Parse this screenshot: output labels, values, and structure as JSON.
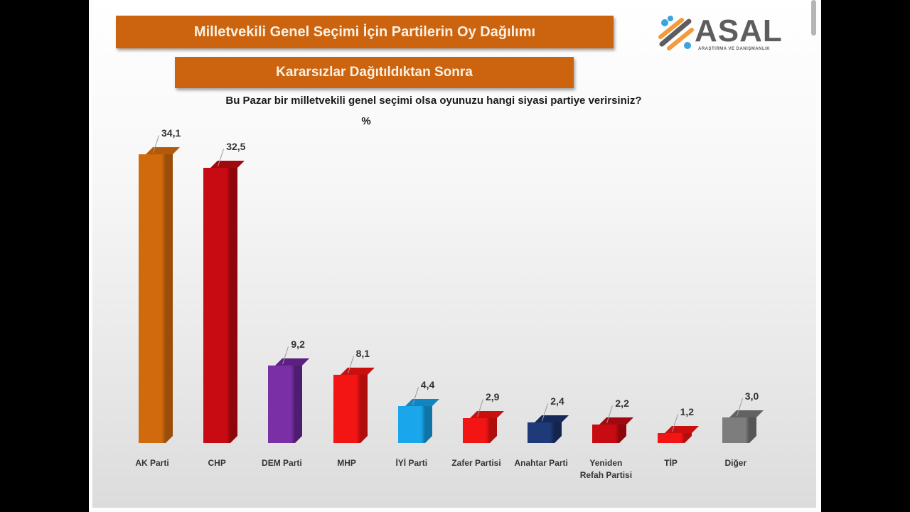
{
  "header": {
    "title": "Milletvekili Genel Seçimi İçin Partilerin Oy Dağılımı",
    "subtitle": "Kararsızlar Dağıtıldıktan Sonra",
    "question": "Bu Pazar bir milletvekili genel seçimi olsa oyunuzu hangi siyasi partiye verirsiniz?",
    "unit": "%"
  },
  "logo": {
    "name": "ASAL",
    "tagline": "ARAŞTIRMA VE DANIŞMANLIK",
    "colors": {
      "orange": "#f39a3c",
      "blue": "#3aa3e0",
      "gray": "#5d5d5f"
    }
  },
  "chart_data": {
    "type": "bar",
    "title": "Milletvekili Genel Seçimi İçin Partilerin Oy Dağılımı",
    "subtitle": "Kararsızlar Dağıtıldıktan Sonra",
    "xlabel": "",
    "ylabel": "%",
    "categories": [
      "AK Parti",
      "CHP",
      "DEM Parti",
      "MHP",
      "İYİ Parti",
      "Zafer Partisi",
      "Anahtar Parti",
      "Yeniden Refah Partisi",
      "TİP",
      "Diğer"
    ],
    "values": [
      34.1,
      32.5,
      9.2,
      8.1,
      4.4,
      2.9,
      2.4,
      2.2,
      1.2,
      3.0
    ],
    "value_labels": [
      "34,1",
      "32,5",
      "9,2",
      "8,1",
      "4,4",
      "2,9",
      "2,4",
      "2,2",
      "1,2",
      "3,0"
    ],
    "colors": [
      "#d06a0c",
      "#c80a12",
      "#7a2fa6",
      "#f31414",
      "#1aa6ea",
      "#f31414",
      "#1f3a78",
      "#c80a12",
      "#f31414",
      "#7d7d7d"
    ],
    "side_colors": [
      "#9b4e09",
      "#8d070d",
      "#4f1d70",
      "#b00d0d",
      "#0f74a6",
      "#b00d0d",
      "#13244d",
      "#8d070d",
      "#b00d0d",
      "#555555"
    ],
    "ylim": [
      0,
      35
    ],
    "grid": false,
    "legend": "none",
    "style": "3d-column"
  },
  "bars": [
    {
      "label_lines": [
        "AK Parti"
      ]
    },
    {
      "label_lines": [
        "CHP"
      ]
    },
    {
      "label_lines": [
        "DEM Parti"
      ]
    },
    {
      "label_lines": [
        "MHP"
      ]
    },
    {
      "label_lines": [
        "İYİ Parti"
      ]
    },
    {
      "label_lines": [
        "Zafer Partisi"
      ]
    },
    {
      "label_lines": [
        "Anahtar Parti"
      ]
    },
    {
      "label_lines": [
        "Yeniden",
        "Refah Partisi"
      ]
    },
    {
      "label_lines": [
        "TİP"
      ]
    },
    {
      "label_lines": [
        "Diğer"
      ]
    }
  ]
}
